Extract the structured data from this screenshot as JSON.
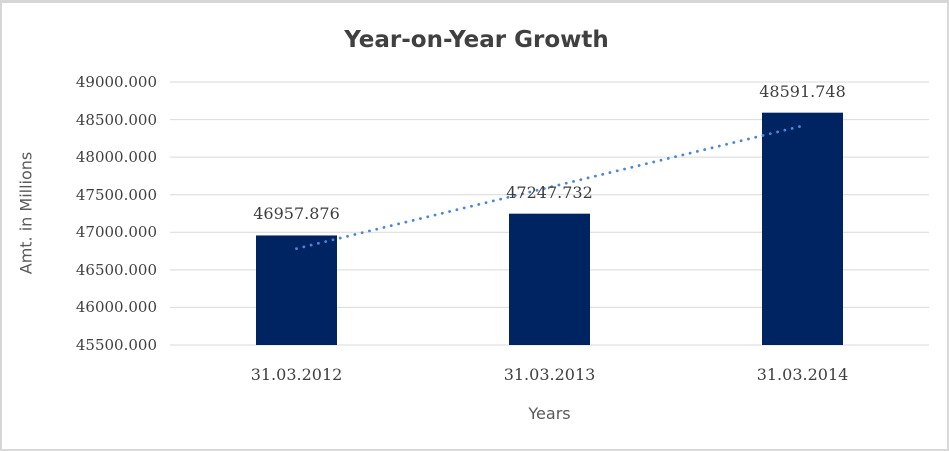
{
  "title": "Year-on-Year Growth",
  "y_axis_title": "Amt. in Millions",
  "x_axis_title": "Years",
  "chart_data": {
    "type": "bar",
    "title": "Year-on-Year Growth",
    "xlabel": "Years",
    "ylabel": "Amt. in Millions",
    "categories": [
      "31.03.2012",
      "31.03.2013",
      "31.03.2014"
    ],
    "values": [
      46957.876,
      47247.732,
      48591.748
    ],
    "data_labels": [
      "46957.876",
      "47247.732",
      "48591.748"
    ],
    "ylim": [
      45500,
      49000
    ],
    "y_tick_step": 500,
    "y_tick_labels": [
      "49000.000",
      "48500.000",
      "48000.000",
      "47500.000",
      "47000.000",
      "46500.000",
      "46000.000",
      "45500.000"
    ],
    "grid": true,
    "legend": "none",
    "trendline": {
      "type": "linear",
      "style": "dotted"
    },
    "colors": {
      "bar": "#002361",
      "trendline": "#4c86d9",
      "gridline": "#d9d9d9",
      "title": "#404040",
      "axis_title": "#595959",
      "tick_label": "#404040",
      "border": "#d6d6d6",
      "background": "#ffffff"
    }
  }
}
